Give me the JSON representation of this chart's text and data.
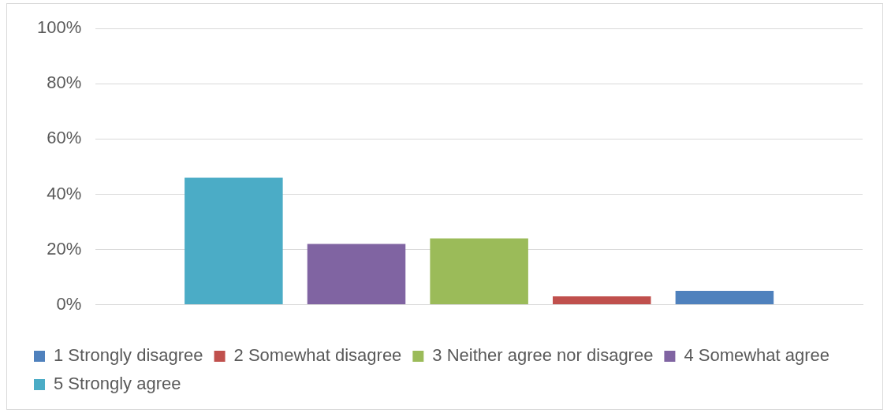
{
  "chart_data": {
    "type": "bar",
    "categories": [
      null
    ],
    "series": [
      {
        "name": "5 Strongly agree",
        "color": "#4bacc6",
        "values": [
          46
        ]
      },
      {
        "name": "4 Somewhat agree",
        "color": "#8064a2",
        "values": [
          22
        ]
      },
      {
        "name": "3 Neither agree nor disagree",
        "color": "#9bbb59",
        "values": [
          24
        ]
      },
      {
        "name": "2 Somewhat disagree",
        "color": "#c0504d",
        "values": [
          3
        ]
      },
      {
        "name": "1 Strongly disagree",
        "color": "#4f81bd",
        "values": [
          5
        ]
      }
    ],
    "ylim": [
      0,
      100
    ],
    "yticks": [
      {
        "value": 0,
        "label": "0%"
      },
      {
        "value": 20,
        "label": "20%"
      },
      {
        "value": 40,
        "label": "40%"
      },
      {
        "value": 60,
        "label": "60%"
      },
      {
        "value": 80,
        "label": "80%"
      },
      {
        "value": 100,
        "label": "100%"
      }
    ],
    "grid": "y",
    "legend": "bottom"
  }
}
